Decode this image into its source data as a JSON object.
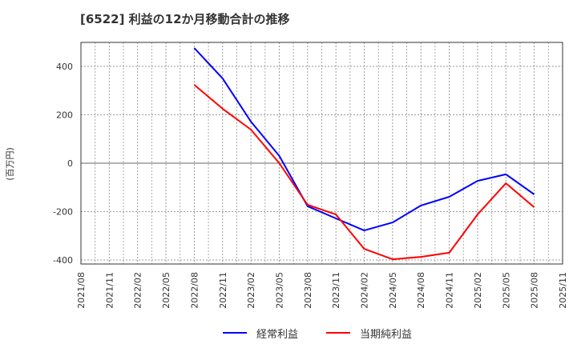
{
  "chart_data": {
    "type": "line",
    "title": "[6522]  利益の12か月移動合計の推移",
    "xlabel": "",
    "ylabel": "(百万円)",
    "ylim": [
      -420,
      500
    ],
    "yticks": [
      400,
      200,
      0,
      -200,
      -400
    ],
    "grid": true,
    "legend_position": "bottom",
    "x": [
      "2021/08",
      "2021/11",
      "2022/02",
      "2022/05",
      "2022/08",
      "2022/11",
      "2023/02",
      "2023/05",
      "2023/08",
      "2023/11",
      "2024/02",
      "2024/05",
      "2024/08",
      "2024/11",
      "2025/02",
      "2025/05",
      "2025/08",
      "2025/11"
    ],
    "series": [
      {
        "name": "経常利益",
        "color": "#0000ff",
        "values": [
          null,
          null,
          null,
          null,
          476,
          350,
          172,
          30,
          -178,
          -228,
          -278,
          -245,
          -175,
          -139,
          -73,
          -46,
          -129,
          null
        ]
      },
      {
        "name": "当期純利益",
        "color": "#ff0000",
        "values": [
          null,
          null,
          null,
          null,
          324,
          225,
          139,
          0,
          -172,
          -212,
          -354,
          -397,
          -387,
          -370,
          -212,
          -83,
          -182,
          null
        ]
      }
    ]
  },
  "legend": {
    "items": [
      {
        "label": "経常利益",
        "color": "#0000ff"
      },
      {
        "label": "当期純利益",
        "color": "#ff0000"
      }
    ]
  }
}
